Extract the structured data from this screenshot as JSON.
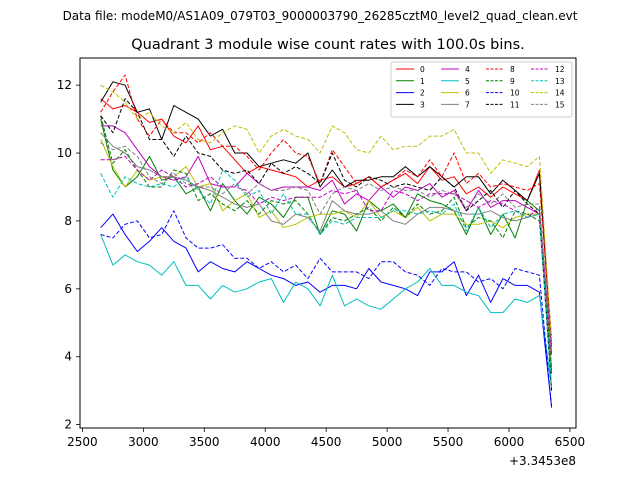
{
  "chart_data": {
    "type": "line",
    "suptitle": "Data file: modeM0/AS1A09_079T03_9000003790_26285cztM0_level2_quad_clean.evt",
    "title": "Quadrant 3 module wise count rates with 100.0s bins.",
    "xlabel": "",
    "ylabel": "",
    "x_offset_label": "+3.3453e8",
    "xlim": [
      2480,
      6550
    ],
    "ylim": [
      1.9,
      12.8
    ],
    "xticks": [
      2500,
      3000,
      3500,
      4000,
      4500,
      5000,
      5500,
      6000,
      6500
    ],
    "yticks": [
      2,
      4,
      6,
      8,
      10,
      12
    ],
    "x": [
      2650,
      2750,
      2850,
      2950,
      3050,
      3150,
      3250,
      3350,
      3450,
      3550,
      3650,
      3750,
      3850,
      3950,
      4050,
      4150,
      4250,
      4350,
      4450,
      4550,
      4650,
      4750,
      4850,
      4950,
      5050,
      5150,
      5250,
      5350,
      5450,
      5550,
      5650,
      5750,
      5850,
      5950,
      6050,
      6150,
      6250,
      6350
    ],
    "legend_position": "upper right",
    "series": [
      {
        "name": "0",
        "color": "#ff0000",
        "dashed": false,
        "values": [
          11.6,
          11.3,
          11.4,
          11.2,
          10.9,
          11.0,
          10.5,
          10.3,
          10.8,
          10.1,
          10.2,
          9.8,
          9.4,
          9.6,
          9.5,
          9.4,
          9.3,
          9.0,
          9.2,
          9.3,
          9.0,
          9.1,
          9.3,
          9.0,
          9.2,
          9.4,
          9.1,
          9.6,
          9.2,
          9.3,
          8.8,
          9.0,
          8.7,
          9.0,
          8.8,
          8.6,
          9.5,
          4.3
        ]
      },
      {
        "name": "1",
        "color": "#008000",
        "dashed": false,
        "values": [
          11.0,
          9.5,
          9.0,
          9.3,
          9.9,
          9.2,
          9.3,
          8.8,
          9.0,
          8.3,
          9.1,
          8.6,
          8.2,
          8.7,
          8.5,
          8.1,
          8.7,
          8.7,
          7.6,
          8.3,
          8.2,
          7.7,
          8.6,
          8.3,
          8.5,
          8.1,
          8.8,
          8.6,
          8.5,
          8.3,
          7.6,
          8.4,
          7.6,
          8.2,
          7.5,
          8.6,
          8.3,
          3.5
        ]
      },
      {
        "name": "2",
        "color": "#0000ff",
        "dashed": false,
        "values": [
          7.8,
          8.2,
          7.6,
          7.1,
          7.4,
          7.8,
          7.4,
          7.2,
          6.5,
          6.8,
          6.6,
          6.5,
          6.8,
          6.6,
          6.4,
          6.3,
          6.1,
          6.2,
          5.9,
          6.1,
          6.1,
          6.0,
          6.6,
          6.2,
          6.1,
          6.0,
          5.8,
          6.5,
          6.5,
          6.8,
          5.8,
          6.4,
          5.6,
          6.3,
          6.1,
          6.1,
          5.9,
          2.5
        ]
      },
      {
        "name": "3",
        "color": "#000000",
        "dashed": false,
        "values": [
          11.5,
          12.1,
          12.0,
          11.2,
          11.3,
          10.4,
          11.4,
          11.2,
          11.0,
          10.5,
          10.7,
          10.0,
          10.0,
          9.6,
          9.7,
          9.8,
          9.7,
          10.0,
          9.0,
          9.5,
          9.0,
          9.2,
          9.2,
          9.3,
          9.3,
          9.6,
          9.3,
          9.6,
          9.3,
          9.0,
          9.3,
          9.3,
          8.8,
          9.2,
          8.9,
          8.6,
          9.4,
          4.3
        ]
      },
      {
        "name": "4",
        "color": "#c000c0",
        "dashed": false,
        "values": [
          10.8,
          10.8,
          10.6,
          10.1,
          9.6,
          9.3,
          9.2,
          9.3,
          9.9,
          9.1,
          9.0,
          9.0,
          9.4,
          9.1,
          8.9,
          9.0,
          9.0,
          9.0,
          8.9,
          9.2,
          8.5,
          8.8,
          8.6,
          9.0,
          8.7,
          9.0,
          8.9,
          9.1,
          8.7,
          8.9,
          8.3,
          8.9,
          8.4,
          8.6,
          8.6,
          8.4,
          8.2,
          4.1
        ]
      },
      {
        "name": "5",
        "color": "#00bfbf",
        "dashed": false,
        "values": [
          7.6,
          6.7,
          7.0,
          6.8,
          6.7,
          6.4,
          6.8,
          6.1,
          6.1,
          5.7,
          6.1,
          5.9,
          6.0,
          6.2,
          6.3,
          5.6,
          6.2,
          6.0,
          5.5,
          6.4,
          5.5,
          5.7,
          5.5,
          5.4,
          5.7,
          6.0,
          6.2,
          6.6,
          6.1,
          6.1,
          5.9,
          5.8,
          5.3,
          5.3,
          5.7,
          5.6,
          5.8,
          3.1
        ]
      },
      {
        "name": "6",
        "color": "#bfbf00",
        "dashed": false,
        "values": [
          10.4,
          9.6,
          9.0,
          9.5,
          9.2,
          9.3,
          9.3,
          9.6,
          9.0,
          9.1,
          8.3,
          8.6,
          8.8,
          8.1,
          8.3,
          7.8,
          7.9,
          8.1,
          8.2,
          8.2,
          8.3,
          8.1,
          8.6,
          8.1,
          8.3,
          8.1,
          8.4,
          8.0,
          8.2,
          8.2,
          7.9,
          7.9,
          8.0,
          7.8,
          8.1,
          8.2,
          8.2,
          3.7
        ]
      },
      {
        "name": "7",
        "color": "#808080",
        "dashed": false,
        "values": [
          10.6,
          10.2,
          10.0,
          9.6,
          9.5,
          9.3,
          9.3,
          9.2,
          9.0,
          8.9,
          8.7,
          8.5,
          8.4,
          8.5,
          8.0,
          7.9,
          8.2,
          8.1,
          7.7,
          8.6,
          8.3,
          8.2,
          8.2,
          8.3,
          8.0,
          7.9,
          8.2,
          8.4,
          8.4,
          8.3,
          8.2,
          8.2,
          8.3,
          8.1,
          8.0,
          8.1,
          8.2,
          3.6
        ]
      },
      {
        "name": "8",
        "color": "#ff0000",
        "dashed": true,
        "values": [
          11.2,
          11.8,
          12.3,
          11.0,
          10.5,
          11.0,
          10.6,
          10.6,
          10.3,
          10.6,
          10.2,
          10.2,
          9.9,
          9.5,
          10.0,
          10.4,
          10.0,
          9.9,
          9.1,
          10.1,
          9.6,
          9.1,
          9.3,
          9.0,
          9.2,
          9.5,
          9.3,
          9.8,
          9.3,
          10.0,
          9.1,
          9.4,
          9.0,
          9.1,
          9.0,
          8.9,
          9.1,
          4.5
        ]
      },
      {
        "name": "9",
        "color": "#008000",
        "dashed": true,
        "values": [
          11.1,
          9.7,
          10.1,
          9.5,
          9.0,
          9.0,
          9.5,
          9.4,
          8.6,
          8.8,
          8.5,
          8.3,
          8.6,
          8.2,
          8.6,
          8.5,
          8.6,
          8.2,
          7.6,
          8.1,
          8.0,
          8.2,
          8.4,
          8.0,
          8.4,
          8.1,
          8.5,
          8.2,
          8.3,
          8.7,
          7.8,
          8.1,
          8.0,
          7.5,
          8.3,
          8.2,
          8.0,
          3.6
        ]
      },
      {
        "name": "10",
        "color": "#0000ff",
        "dashed": true,
        "values": [
          7.6,
          7.5,
          7.9,
          8.0,
          7.5,
          7.6,
          8.3,
          7.5,
          7.2,
          7.2,
          7.3,
          6.9,
          6.9,
          6.6,
          6.8,
          6.5,
          6.7,
          6.3,
          6.9,
          6.5,
          6.5,
          6.5,
          6.3,
          6.8,
          6.8,
          6.5,
          6.4,
          6.1,
          6.6,
          6.5,
          6.5,
          6.2,
          6.3,
          6.0,
          6.6,
          6.5,
          6.4,
          2.5
        ]
      },
      {
        "name": "11",
        "color": "#000000",
        "dashed": true,
        "values": [
          11.1,
          10.6,
          11.6,
          11.2,
          10.4,
          10.4,
          9.9,
          10.5,
          10.0,
          9.9,
          9.5,
          9.4,
          9.5,
          9.1,
          9.7,
          9.4,
          9.6,
          9.4,
          9.1,
          10.0,
          9.2,
          9.0,
          9.3,
          9.2,
          9.0,
          9.1,
          9.0,
          8.9,
          9.3,
          9.0,
          8.3,
          8.6,
          8.9,
          8.4,
          8.9,
          8.5,
          8.2,
          3.0
        ]
      },
      {
        "name": "12",
        "color": "#c000c0",
        "dashed": true,
        "values": [
          9.8,
          9.8,
          9.9,
          9.5,
          9.2,
          9.5,
          9.3,
          9.0,
          9.1,
          9.3,
          9.0,
          9.0,
          8.9,
          8.5,
          8.7,
          8.6,
          8.7,
          8.7,
          8.7,
          8.9,
          8.8,
          8.9,
          8.3,
          8.3,
          8.9,
          8.8,
          8.6,
          8.8,
          8.8,
          8.8,
          8.6,
          8.4,
          8.6,
          8.5,
          8.3,
          8.1,
          8.4,
          4.0
        ]
      },
      {
        "name": "13",
        "color": "#00bfbf",
        "dashed": true,
        "values": [
          9.4,
          8.7,
          9.3,
          9.1,
          9.0,
          9.1,
          9.0,
          9.3,
          8.9,
          8.5,
          9.5,
          9.2,
          8.7,
          8.9,
          8.2,
          8.8,
          8.2,
          8.2,
          7.6,
          8.0,
          7.9,
          8.1,
          8.1,
          8.1,
          8.3,
          8.3,
          8.2,
          8.3,
          8.2,
          8.5,
          7.7,
          8.4,
          7.8,
          8.2,
          8.3,
          8.1,
          8.2,
          3.1
        ]
      },
      {
        "name": "14",
        "color": "#bfbf00",
        "dashed": true,
        "values": [
          12.0,
          11.8,
          11.5,
          11.0,
          11.2,
          10.8,
          10.6,
          10.9,
          10.4,
          10.3,
          10.6,
          10.8,
          10.7,
          10.0,
          10.5,
          10.7,
          10.5,
          10.4,
          10.0,
          10.8,
          10.6,
          10.1,
          10.0,
          10.5,
          10.1,
          10.2,
          10.2,
          10.5,
          10.5,
          10.7,
          10.0,
          10.0,
          9.4,
          9.8,
          9.7,
          9.6,
          9.9,
          4.4
        ]
      },
      {
        "name": "15",
        "color": "#808080",
        "dashed": true,
        "values": [
          10.3,
          10.1,
          10.2,
          9.9,
          9.3,
          9.1,
          9.4,
          9.1,
          9.0,
          9.0,
          8.8,
          9.1,
          8.8,
          9.1,
          8.9,
          8.9,
          9.0,
          8.9,
          8.2,
          8.8,
          9.0,
          8.9,
          9.1,
          8.9,
          9.0,
          8.9,
          8.9,
          8.7,
          8.9,
          8.8,
          8.4,
          8.8,
          8.5,
          8.8,
          8.4,
          8.5,
          8.5,
          4.2
        ]
      }
    ]
  }
}
